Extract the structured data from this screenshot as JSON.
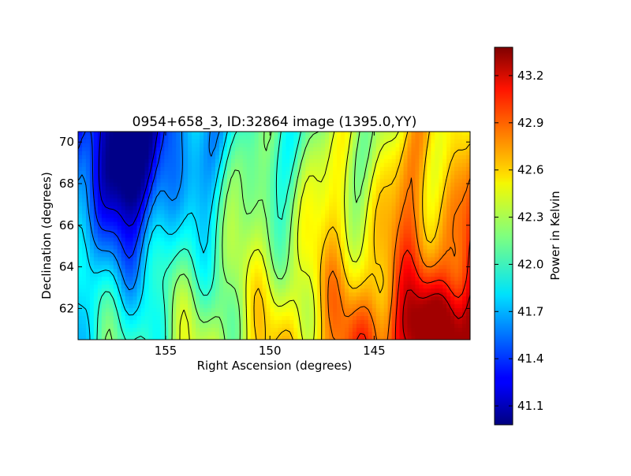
{
  "chart_data": {
    "type": "heatmap",
    "title": "0954+658_3, ID:32864 image (1395.0,YY)",
    "xlabel": "Right Ascension (degrees)",
    "ylabel": "Declination (degrees)",
    "xlim": [
      159.2,
      140.4
    ],
    "ylim": [
      60.5,
      70.5
    ],
    "x_ticks": [
      155,
      150,
      145
    ],
    "x_tick_labels": [
      "155",
      "150",
      "145"
    ],
    "y_ticks": [
      62,
      64,
      66,
      68,
      70
    ],
    "y_tick_labels": [
      "62",
      "64",
      "66",
      "68",
      "70"
    ],
    "colorbar": {
      "label": "Power in Kelvin",
      "colormap": "jet",
      "range": [
        40.98,
        43.38
      ],
      "ticks": [
        41.1,
        41.4,
        41.7,
        42.0,
        42.3,
        42.6,
        42.9,
        43.2
      ],
      "tick_labels": [
        "41.1",
        "41.4",
        "41.7",
        "42.0",
        "42.3",
        "42.6",
        "42.9",
        "43.2"
      ]
    },
    "contours": true,
    "contour_color": "#000000",
    "field_summary": {
      "minimum_region_ra_dec": [
        156.5,
        69.5
      ],
      "minimum_value": 41.0,
      "maximum_region_ra_dec": [
        141.5,
        61.0
      ],
      "maximum_value": 43.3,
      "gradient": "power increases from high RA (left) to low RA (right) and from high Dec (top) to low Dec (bottom)"
    }
  }
}
